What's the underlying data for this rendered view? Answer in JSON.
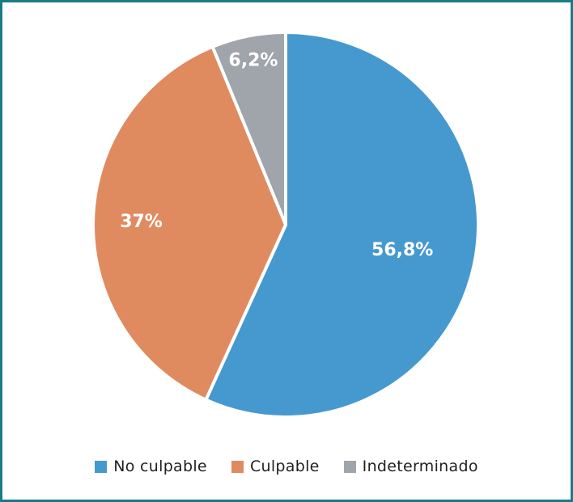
{
  "chart_data": {
    "type": "pie",
    "title": "",
    "slices": [
      {
        "name": "No culpable",
        "value": 56.8,
        "label": "56,8%",
        "color": "#4599cf"
      },
      {
        "name": "Culpable",
        "value": 37.0,
        "label": "37%",
        "color": "#e08a60"
      },
      {
        "name": "Indeterminado",
        "value": 6.2,
        "label": "6,2%",
        "color": "#a0a4ab"
      }
    ],
    "start": "top",
    "direction": "clockwise",
    "legend_position": "bottom",
    "border_color": "#1a7a86"
  }
}
